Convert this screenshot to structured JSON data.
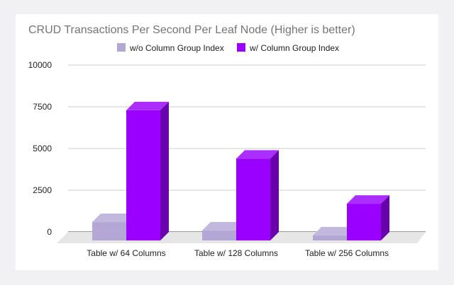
{
  "chart_data": {
    "type": "bar",
    "title": "CRUD Transactions Per Second Per Leaf Node (Higher is better)",
    "categories": [
      "Table w/ 64 Columns",
      "Table w/ 128 Columns",
      "Table w/ 256 Columns"
    ],
    "series": [
      {
        "name": "w/o Column Group Index",
        "values": [
          1100,
          600,
          300
        ],
        "color": "#b4a7d6"
      },
      {
        "name": "w/ Column Group Index",
        "values": [
          7800,
          4900,
          2200
        ],
        "color": "#9900ff"
      }
    ],
    "ylim": [
      0,
      10000
    ],
    "yticks": [
      "0",
      "2500",
      "5000",
      "7500",
      "10000"
    ],
    "grid": true,
    "legend_position": "top-center",
    "style": "3d-bar"
  }
}
